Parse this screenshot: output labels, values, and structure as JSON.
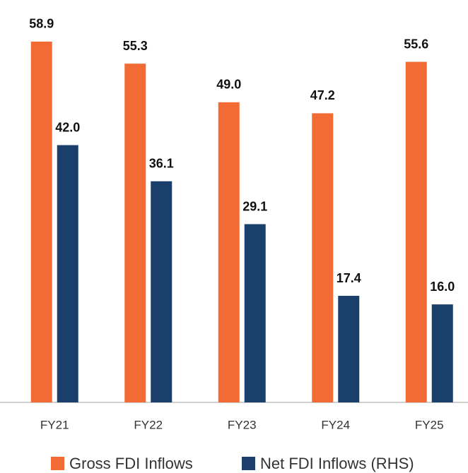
{
  "chart_data": {
    "type": "bar",
    "categories": [
      "FY21",
      "FY22",
      "FY23",
      "FY24",
      "FY25"
    ],
    "series": [
      {
        "name": "Gross FDI Inflows",
        "color": "#f26b35",
        "values": [
          58.9,
          55.3,
          49.0,
          47.2,
          55.6
        ],
        "value_labels": [
          "58.9",
          "55.3",
          "49.0",
          "47.2",
          "55.6"
        ]
      },
      {
        "name": "Net FDI Inflows (RHS)",
        "color": "#1b3f6b",
        "axis": "y2",
        "values": [
          42.0,
          36.1,
          29.1,
          17.4,
          16.0
        ],
        "value_labels": [
          "42.0",
          "36.1",
          "29.1",
          "17.4",
          "16.0"
        ]
      }
    ],
    "ylim": [
      0,
      65
    ],
    "y2lim": [
      0,
      65
    ],
    "legend": "bottom"
  }
}
